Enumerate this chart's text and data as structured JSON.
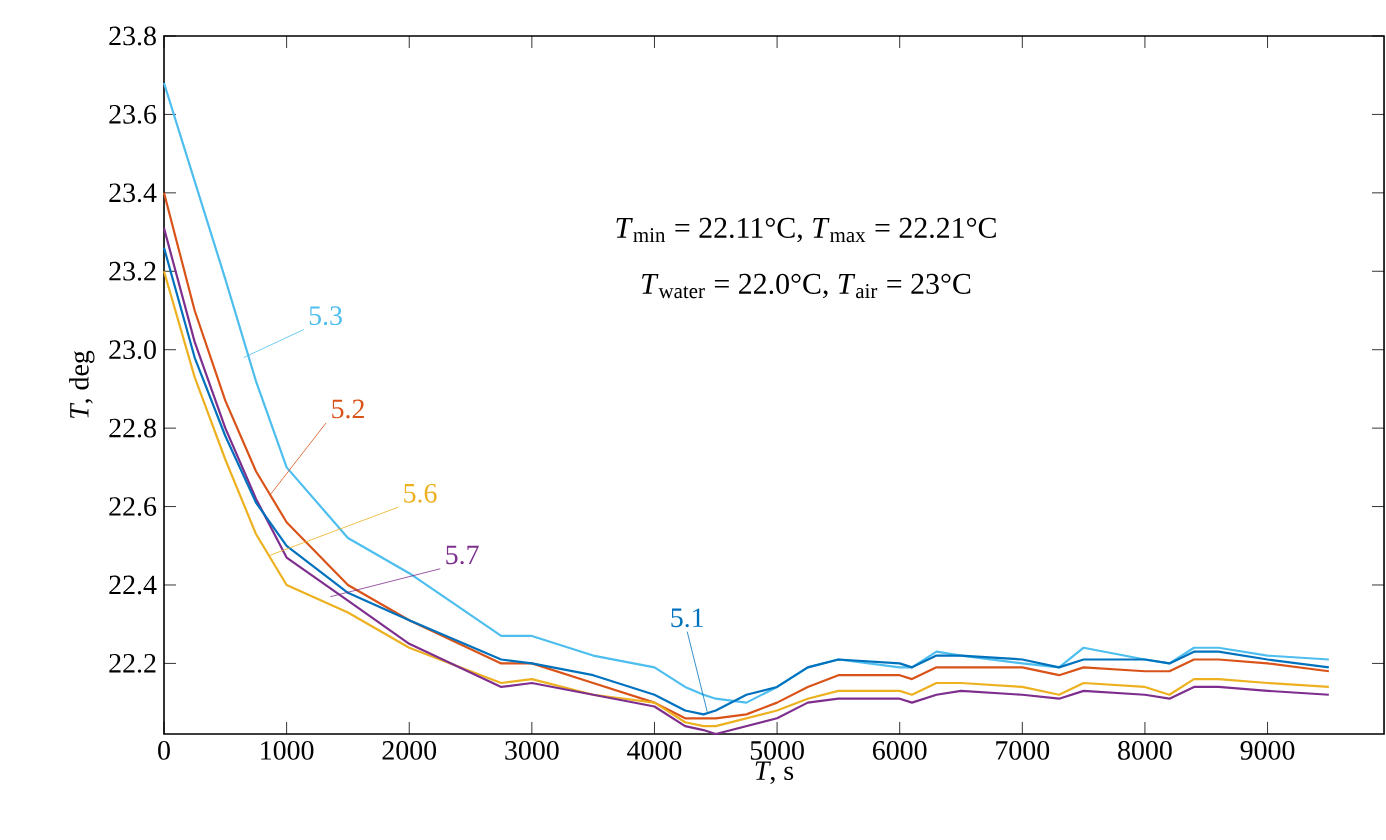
{
  "chart_data": {
    "type": "line",
    "xlabel": "*T*, s",
    "ylabel": "*T*, deg",
    "annotations": [
      "*T*$_{min}$ = 22.11°C, *T*$_{max}$ = 22.21°C",
      "*T*$_{water}$ = 22.0°C, *T*$_{air}$ = 23°C"
    ],
    "x": [
      0,
      250,
      500,
      750,
      1000,
      1500,
      2000,
      2750,
      3000,
      3500,
      4000,
      4250,
      4400,
      4500,
      4750,
      5000,
      5250,
      5500,
      6000,
      6100,
      6300,
      6500,
      7000,
      7300,
      7500,
      8000,
      8200,
      8400,
      8600,
      9000,
      9500
    ],
    "series": [
      {
        "name": "5.3",
        "color": "#4dbeee",
        "values": [
          23.68,
          23.43,
          23.18,
          22.92,
          22.7,
          22.52,
          22.43,
          22.27,
          22.27,
          22.22,
          22.19,
          22.14,
          22.12,
          22.11,
          22.1,
          22.14,
          22.19,
          22.21,
          22.19,
          22.19,
          22.23,
          22.22,
          22.2,
          22.19,
          22.24,
          22.21,
          22.2,
          22.24,
          22.24,
          22.22,
          22.21
        ]
      },
      {
        "name": "5.2",
        "color": "#d95319",
        "values": [
          23.4,
          23.1,
          22.87,
          22.69,
          22.56,
          22.4,
          22.31,
          22.2,
          22.2,
          22.15,
          22.1,
          22.06,
          22.06,
          22.06,
          22.07,
          22.1,
          22.14,
          22.17,
          22.17,
          22.16,
          22.19,
          22.19,
          22.19,
          22.17,
          22.19,
          22.18,
          22.18,
          22.21,
          22.21,
          22.2,
          22.18
        ]
      },
      {
        "name": "5.6",
        "color": "#edb120",
        "values": [
          23.2,
          22.93,
          22.72,
          22.53,
          22.4,
          22.33,
          22.24,
          22.15,
          22.16,
          22.12,
          22.1,
          22.05,
          22.04,
          22.04,
          22.06,
          22.08,
          22.11,
          22.13,
          22.13,
          22.12,
          22.15,
          22.15,
          22.14,
          22.12,
          22.15,
          22.14,
          22.12,
          22.16,
          22.16,
          22.15,
          22.14
        ]
      },
      {
        "name": "5.7",
        "color": "#7e2f8e",
        "values": [
          23.31,
          23.02,
          22.8,
          22.62,
          22.47,
          22.36,
          22.25,
          22.14,
          22.15,
          22.12,
          22.09,
          22.04,
          22.03,
          22.02,
          22.04,
          22.06,
          22.1,
          22.11,
          22.11,
          22.1,
          22.12,
          22.13,
          22.12,
          22.11,
          22.13,
          22.12,
          22.11,
          22.14,
          22.14,
          22.13,
          22.12
        ]
      },
      {
        "name": "5.1",
        "color": "#0072bd",
        "values": [
          23.26,
          22.98,
          22.78,
          22.61,
          22.5,
          22.38,
          22.31,
          22.21,
          22.2,
          22.17,
          22.12,
          22.08,
          22.07,
          22.08,
          22.12,
          22.14,
          22.19,
          22.21,
          22.2,
          22.19,
          22.22,
          22.22,
          22.21,
          22.19,
          22.21,
          22.21,
          22.2,
          22.23,
          22.23,
          22.21,
          22.19
        ]
      }
    ],
    "xlim": [
      0,
      9950
    ],
    "ylim": [
      22.02,
      23.8
    ],
    "xticks": [
      0,
      1000,
      2000,
      3000,
      4000,
      5000,
      6000,
      7000,
      8000,
      9000
    ],
    "yticks": [
      22.2,
      22.4,
      22.6,
      22.8,
      {
        "value": 23.0,
        "label": "23.0"
      },
      23.2,
      23.4,
      23.6,
      23.8
    ],
    "grid": false,
    "legend": false,
    "marker": "none",
    "line_style": "solid"
  }
}
